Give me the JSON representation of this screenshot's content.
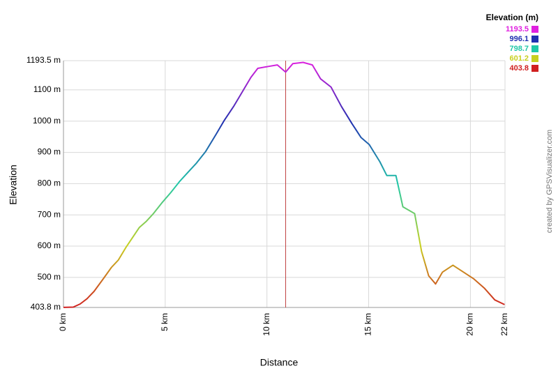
{
  "chart_data": {
    "type": "line",
    "y_label": "Elevation",
    "x_label": "Distance",
    "watermark": "created by GPSVisualizer.com",
    "legend_title": "Elevation (m)",
    "color_scale": [
      {
        "value": 1193.5,
        "color": "#e020e0"
      },
      {
        "value": 996.1,
        "color": "#2030b0"
      },
      {
        "value": 798.7,
        "color": "#20c8a8"
      },
      {
        "value": 601.2,
        "color": "#c8d020"
      },
      {
        "value": 403.8,
        "color": "#d02020"
      }
    ],
    "x": [
      0,
      0.48,
      0.82,
      1.16,
      1.5,
      1.95,
      2.36,
      2.7,
      3.05,
      3.39,
      3.73,
      4.08,
      4.42,
      4.83,
      5.27,
      5.72,
      6.13,
      6.54,
      6.99,
      7.5,
      7.91,
      8.36,
      8.8,
      9.21,
      9.55,
      10.07,
      10.51,
      10.92,
      11.27,
      11.78,
      12.23,
      12.64,
      13.15,
      13.66,
      14.18,
      14.62,
      15.03,
      15.55,
      15.89,
      16.34,
      16.68,
      17.26,
      17.6,
      17.95,
      18.29,
      18.63,
      19.14,
      19.66,
      20.17,
      20.68,
      21.2,
      21.68
    ],
    "values": [
      404,
      405,
      415,
      432,
      455,
      495,
      532,
      556,
      594,
      627,
      660,
      680,
      704,
      738,
      771,
      808,
      837,
      866,
      903,
      958,
      1003,
      1047,
      1095,
      1140,
      1169,
      1175,
      1180,
      1157,
      1184,
      1188,
      1180,
      1135,
      1109,
      1047,
      992,
      948,
      925,
      870,
      826,
      826,
      726,
      704,
      583,
      505,
      479,
      517,
      539,
      517,
      495,
      466,
      428,
      413
    ],
    "marker_x": 10.92,
    "marker_color": "#c04040",
    "xlim": [
      0,
      21.7
    ],
    "xticks": [
      {
        "value": 0,
        "label": "0 km"
      },
      {
        "value": 5,
        "label": "5 km"
      },
      {
        "value": 10,
        "label": "10 km"
      },
      {
        "value": 15,
        "label": "15 km"
      },
      {
        "value": 20,
        "label": "20 km"
      },
      {
        "value": 21.7,
        "label": "22 km"
      }
    ],
    "ylim": [
      403.8,
      1193.5
    ],
    "yticks": [
      {
        "value": 403.8,
        "label": "403.8 m"
      },
      {
        "value": 500,
        "label": "500 m"
      },
      {
        "value": 600,
        "label": "600 m"
      },
      {
        "value": 700,
        "label": "700 m"
      },
      {
        "value": 800,
        "label": "800 m"
      },
      {
        "value": 900,
        "label": "900 m"
      },
      {
        "value": 1000,
        "label": "1000 m"
      },
      {
        "value": 1100,
        "label": "1100 m"
      },
      {
        "value": 1193.5,
        "label": "1193.5 m"
      }
    ],
    "grid": true
  }
}
